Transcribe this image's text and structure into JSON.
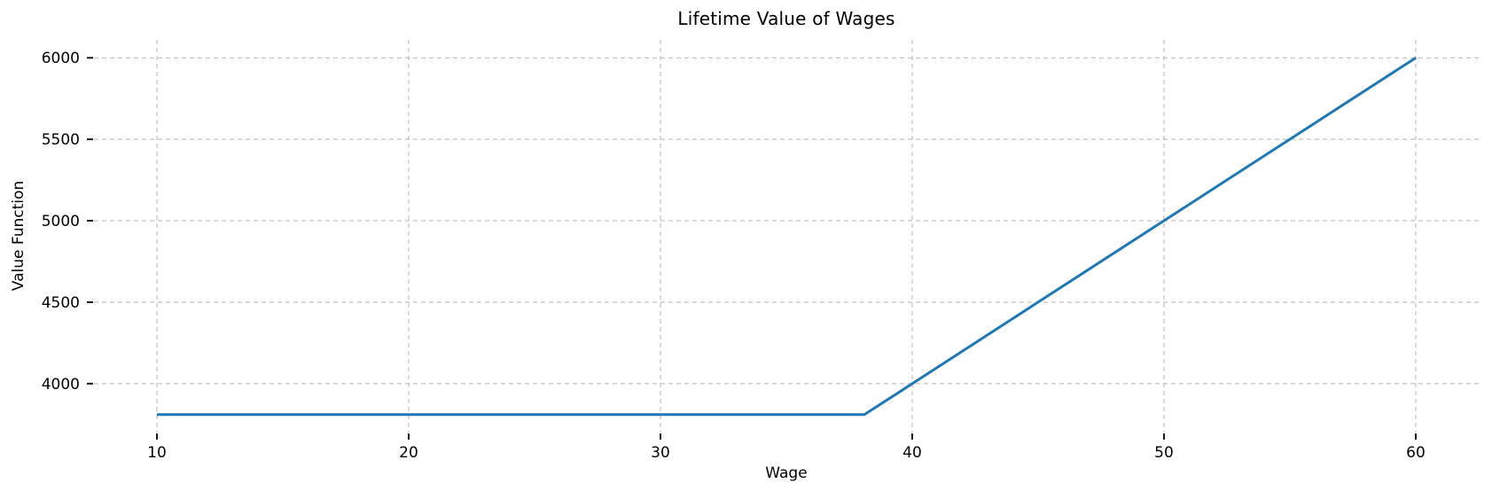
{
  "figure": {
    "background": "#ffffff"
  },
  "chart_data": {
    "type": "line",
    "title": "Lifetime Value of Wages",
    "xlabel": "Wage",
    "ylabel": "Value Function",
    "x_ticks": [
      10,
      20,
      30,
      40,
      50,
      60
    ],
    "y_ticks": [
      4000,
      4500,
      5000,
      5500,
      6000
    ],
    "xlim": [
      7.5,
      62.5
    ],
    "ylim": [
      3700,
      6110
    ],
    "grid": {
      "on": true,
      "style": "dashed",
      "color": "#b3b3b3"
    },
    "axes_style": {
      "spines": "none",
      "tick_color": "#1a1a1a"
    },
    "legend": "none",
    "series": [
      {
        "name": "value-function",
        "color": "#1f77b4",
        "line_width": 3,
        "points": [
          [
            10,
            3810
          ],
          [
            20,
            3810
          ],
          [
            30,
            3810
          ],
          [
            38.1,
            3810
          ],
          [
            40,
            4000
          ],
          [
            45,
            4500
          ],
          [
            50,
            5000
          ],
          [
            55,
            5500
          ],
          [
            60,
            6000
          ]
        ]
      }
    ]
  }
}
